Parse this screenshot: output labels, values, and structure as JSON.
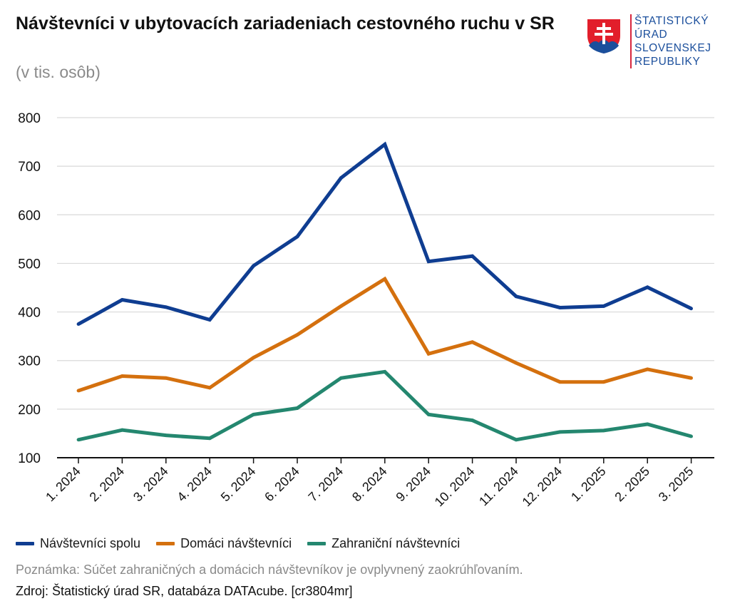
{
  "header": {
    "title": "Návštevníci v ubytovacích zariadeniach cestovného ruchu v SR",
    "subtitle": "(v tis. osôb)"
  },
  "logo": {
    "lines": [
      "ŠTATISTICKÝ",
      "ÚRAD",
      "SLOVENSKEJ",
      "REPUBLIKY"
    ]
  },
  "footer": {
    "note": "Poznámka: Súčet zahraničných a domácich návštevníkov je ovplyvnený zaokrúhľovaním.",
    "source": "Zdroj: Štatistický úrad SR, databáza DATAcube. [cr3804mr]"
  },
  "chart_data": {
    "type": "line",
    "title": "Návštevníci v ubytovacích zariadeniach cestovného ruchu v SR",
    "ylabel": "(v tis. osôb)",
    "xlabel": "",
    "ylim": [
      100,
      800
    ],
    "yticks": [
      100,
      200,
      300,
      400,
      500,
      600,
      700,
      800
    ],
    "grid": true,
    "legend_position": "bottom-left",
    "categories": [
      "1. 2024",
      "2. 2024",
      "3. 2024",
      "4. 2024",
      "5. 2024",
      "6. 2024",
      "7. 2024",
      "8. 2024",
      "9. 2024",
      "10. 2024",
      "11. 2024",
      "12. 2024",
      "1. 2025",
      "2. 2025",
      "3. 2025"
    ],
    "series": [
      {
        "name": "Návštevníci spolu",
        "color": "#0f3d91",
        "values": [
          375,
          425,
          410,
          384,
          495,
          555,
          676,
          745,
          504,
          515,
          432,
          409,
          412,
          451,
          407
        ]
      },
      {
        "name": "Domáci návštevníci",
        "color": "#d4700e",
        "values": [
          238,
          268,
          264,
          244,
          306,
          353,
          412,
          468,
          314,
          338,
          295,
          256,
          256,
          282,
          264
        ]
      },
      {
        "name": "Zahraniční návštevníci",
        "color": "#24876f",
        "values": [
          137,
          157,
          146,
          140,
          189,
          202,
          264,
          277,
          189,
          177,
          137,
          153,
          156,
          169,
          144
        ]
      }
    ]
  }
}
